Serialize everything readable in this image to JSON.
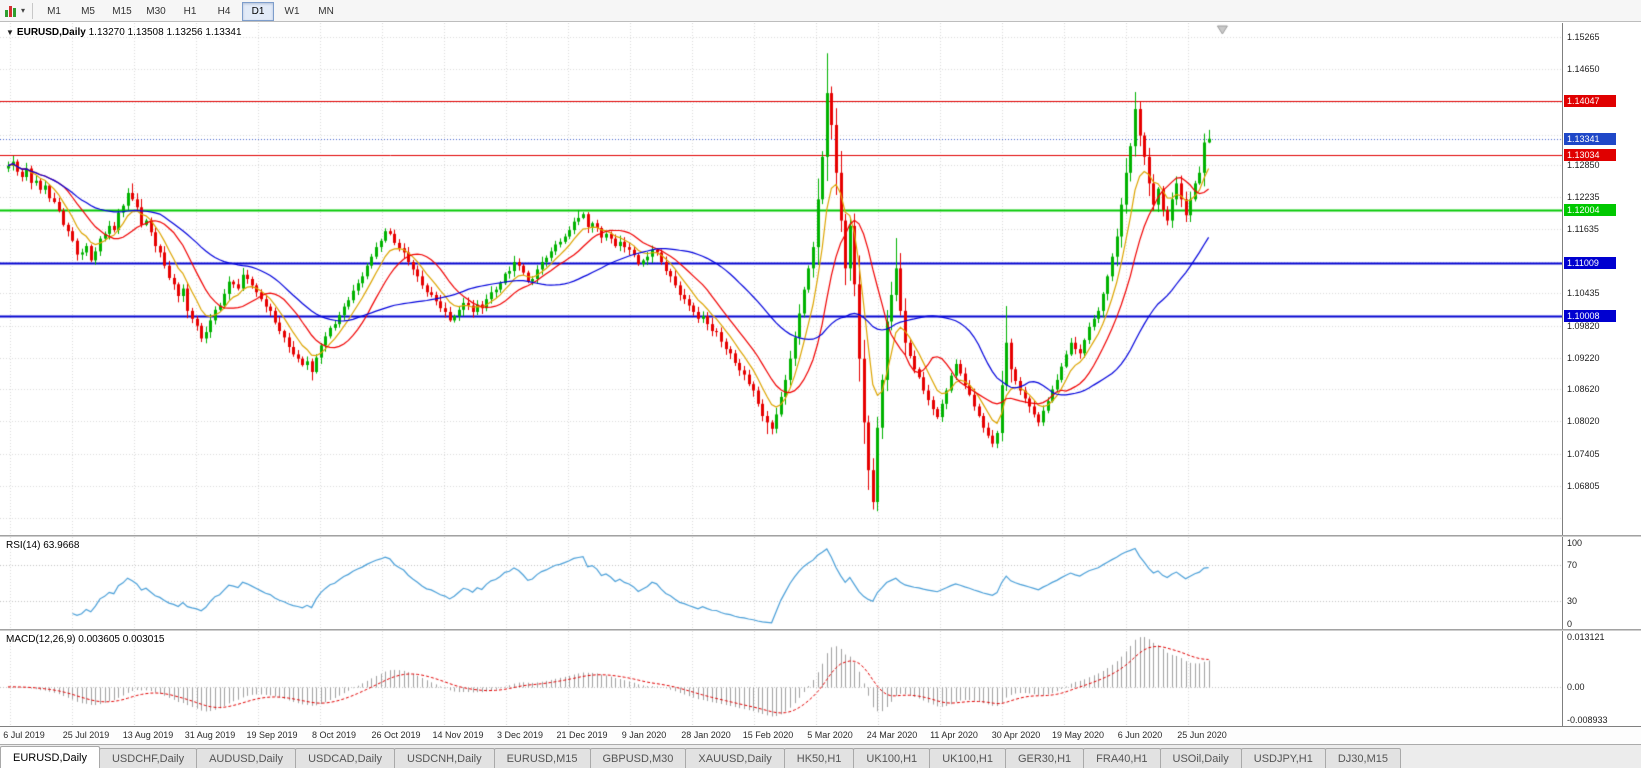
{
  "toolbar": {
    "timeframes": [
      "M1",
      "M5",
      "M15",
      "M30",
      "H1",
      "H4",
      "D1",
      "W1",
      "MN"
    ],
    "active": "D1",
    "icons": [
      "chart-type-icon",
      "dropdown-caret-icon"
    ]
  },
  "chart": {
    "header_symbol": "EURUSD,Daily",
    "header_ohlc": "1.13270 1.13508 1.13256 1.13341"
  },
  "chart_data": {
    "type": "candlestick",
    "symbol": "EURUSD",
    "timeframe": "Daily",
    "price_max": 1.1552,
    "price_min": 1.0588,
    "first_open": 1.1278,
    "closes": [
      1.1283,
      1.1291,
      1.1272,
      1.1262,
      1.1278,
      1.1251,
      1.1255,
      1.1238,
      1.1246,
      1.1222,
      1.1215,
      1.1198,
      1.1172,
      1.116,
      1.1142,
      1.1116,
      1.112,
      1.1132,
      1.1105,
      1.1122,
      1.1146,
      1.1155,
      1.117,
      1.1162,
      1.1195,
      1.1208,
      1.1232,
      1.122,
      1.1205,
      1.1172,
      1.118,
      1.1158,
      1.1132,
      1.112,
      1.1095,
      1.1072,
      1.106,
      1.1038,
      1.1052,
      1.101,
      1.0995,
      1.0982,
      1.0958,
      1.097,
      1.0992,
      1.1012,
      1.102,
      1.1042,
      1.1065,
      1.106,
      1.1052,
      1.1078,
      1.107,
      1.1058,
      1.1045,
      1.1032,
      1.1018,
      1.101,
      1.0988,
      1.0972,
      1.096,
      1.0942,
      1.0928,
      1.092,
      1.0908,
      1.0915,
      1.0895,
      1.0922,
      1.0945,
      1.0962,
      1.0978,
      1.0985,
      1.1002,
      1.1018,
      1.103,
      1.1048,
      1.1062,
      1.1075,
      1.1095,
      1.1112,
      1.113,
      1.1142,
      1.116,
      1.1155,
      1.1138,
      1.1128,
      1.112,
      1.1102,
      1.1088,
      1.1075,
      1.1058,
      1.1045,
      1.104,
      1.1028,
      1.1015,
      1.1008,
      1.0992,
      1.1,
      1.1012,
      1.1025,
      1.102,
      1.1008,
      1.1022,
      1.1015,
      1.1032,
      1.1045,
      1.105,
      1.1062,
      1.108,
      1.1085,
      1.1102,
      1.1095,
      1.1082,
      1.1065,
      1.107,
      1.1088,
      1.1102,
      1.111,
      1.1122,
      1.1135,
      1.114,
      1.115,
      1.1162,
      1.1178,
      1.1185,
      1.1192,
      1.1168,
      1.1175,
      1.1166,
      1.1148,
      1.1155,
      1.1146,
      1.1132,
      1.114,
      1.113,
      1.1125,
      1.1115,
      1.1098,
      1.1105,
      1.1112,
      1.1125,
      1.112,
      1.1102,
      1.1085,
      1.1075,
      1.1058,
      1.104,
      1.1032,
      1.102,
      1.1008,
      1.0995,
      1.1,
      1.0985,
      1.0972,
      1.097,
      1.0952,
      1.0938,
      1.093,
      1.0912,
      1.0898,
      1.089,
      1.0872,
      1.086,
      1.0835,
      1.0812,
      1.08,
      1.0788,
      1.0815,
      1.0848,
      1.088,
      1.092,
      1.096,
      1.1005,
      1.105,
      1.109,
      1.113,
      1.122,
      1.13,
      1.142,
      1.136,
      1.127,
      1.118,
      1.109,
      1.117,
      1.106,
      1.092,
      1.08,
      1.071,
      1.065,
      1.079,
      1.088,
      1.099,
      1.104,
      1.109,
      1.101,
      1.095,
      1.0925,
      1.09,
      1.0885,
      1.086,
      1.0842,
      1.0825,
      1.081,
      1.0835,
      1.086,
      1.0888,
      1.091,
      1.0892,
      1.087,
      1.0852,
      1.083,
      1.0812,
      1.079,
      1.0775,
      1.076,
      1.078,
      1.087,
      1.095,
      1.09,
      1.0878,
      1.086,
      1.0845,
      1.083,
      1.0815,
      1.08,
      1.0822,
      1.084,
      1.0862,
      1.088,
      1.0905,
      1.0928,
      1.095,
      1.0938,
      1.093,
      1.0955,
      1.098,
      1.0995,
      1.101,
      1.1042,
      1.1075,
      1.1112,
      1.115,
      1.121,
      1.127,
      1.132,
      1.139,
      1.134,
      1.13,
      1.125,
      1.121,
      1.124,
      1.12,
      1.118,
      1.122,
      1.125,
      1.122,
      1.119,
      1.122,
      1.125,
      1.127,
      1.1327,
      1.1334
    ],
    "extremes": {
      "27": {
        "high": 1.125
      },
      "66": {
        "low": 1.0879
      },
      "124": {
        "high": 1.12
      },
      "165": {
        "low": 1.0778
      },
      "178": {
        "high": 1.1495
      },
      "188": {
        "low": 1.0636
      },
      "193": {
        "high": 1.1147
      },
      "217": {
        "high": 1.1019
      },
      "245": {
        "high": 1.1422
      },
      "261": {
        "high": 1.13508,
        "low": 1.13256
      }
    },
    "up_color": "#00b200",
    "down_color": "#e60000",
    "mas": [
      {
        "name": "ma-fast",
        "type": "ema",
        "period": 7,
        "color": "#dca400"
      },
      {
        "name": "ma-mid",
        "type": "sma",
        "period": 13,
        "color": "#f00000"
      },
      {
        "name": "ma-slow",
        "type": "sma",
        "period": 34,
        "color": "#0000dc"
      }
    ],
    "hlines": [
      {
        "value": 1.14047,
        "label": "1.14047",
        "color": "#e00000",
        "width": 1
      },
      {
        "value": 1.13034,
        "label": "1.13034",
        "color": "#e00000",
        "width": 1
      },
      {
        "value": 1.12004,
        "label": "1.12004",
        "color": "#00c800",
        "width": 2
      },
      {
        "value": 1.11009,
        "label": "1.11009",
        "color": "#0000d0",
        "width": 2
      },
      {
        "value": 1.10008,
        "label": "1.10008",
        "color": "#0000d0",
        "width": 2
      }
    ],
    "current_price": {
      "value": 1.13341,
      "label": "1.13341",
      "color": "#1f48c8"
    },
    "price_ticks": [
      "1.15265",
      "1.14650",
      "1.12850",
      "1.12235",
      "1.11635",
      "1.10435",
      "1.09820",
      "1.09220",
      "1.08620",
      "1.08020",
      "1.07405",
      "1.06805"
    ],
    "grid_ticks": [
      1.15265,
      1.1465,
      1.14035,
      1.1342,
      1.1285,
      1.12235,
      1.11635,
      1.1102,
      1.10435,
      1.0982,
      1.0922,
      1.0862,
      1.0802,
      1.07405,
      1.06805,
      1.06205
    ],
    "date_labels": [
      "6 Jul 2019",
      "25 Jul 2019",
      "13 Aug 2019",
      "31 Aug 2019",
      "19 Sep 2019",
      "8 Oct 2019",
      "26 Oct 2019",
      "14 Nov 2019",
      "3 Dec 2019",
      "21 Dec 2019",
      "9 Jan 2020",
      "28 Jan 2020",
      "15 Feb 2020",
      "5 Mar 2020",
      "24 Mar 2020",
      "11 Apr 2020",
      "30 Apr 2020",
      "19 May 2020",
      "6 Jun 2020",
      "25 Jun 2020"
    ]
  },
  "rsi": {
    "label": "RSI(14) 63.9668",
    "period": 14,
    "color": "#4a9fd8",
    "levels": [
      "100",
      "70",
      "30",
      "0"
    ],
    "level_values": [
      100,
      70,
      30,
      0
    ],
    "upper": 70,
    "lower": 30
  },
  "macd": {
    "label": "MACD(12,26,9) 0.003605 0.003015",
    "fast": 12,
    "slow": 26,
    "signal": 9,
    "axis_labels": [
      "0.013121",
      "0.00",
      "-0.008933"
    ],
    "axis_values": [
      0.013121,
      0,
      -0.008933
    ],
    "max": 0.013121,
    "min": -0.008933,
    "hist_color": "#a0a0a0",
    "signal_color": "#e00000"
  },
  "tabs": {
    "items": [
      "EURUSD,Daily",
      "USDCHF,Daily",
      "AUDUSD,Daily",
      "USDCAD,Daily",
      "USDCNH,Daily",
      "EURUSD,M15",
      "GBPUSD,M30",
      "XAUUSD,Daily",
      "HK50,H1",
      "UK100,H1",
      "UK100,H1",
      "GER30,H1",
      "FRA40,H1",
      "USOil,Daily",
      "USDJPY,H1",
      "DJ30,M15"
    ],
    "active_index": 0
  }
}
